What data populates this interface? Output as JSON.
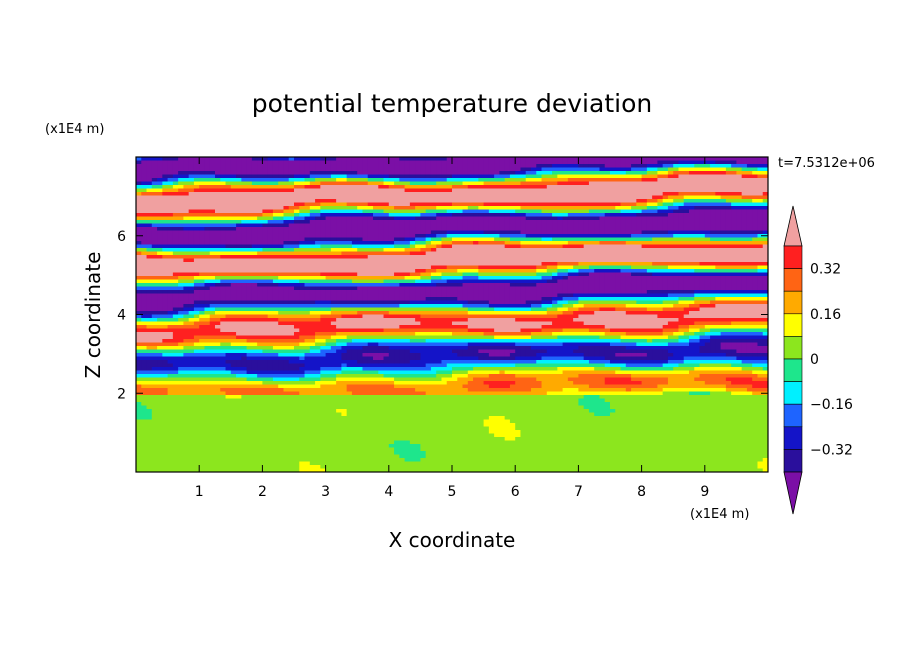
{
  "chart_data": {
    "type": "heatmap",
    "title": "potential temperature deviation",
    "xlabel": "X coordinate",
    "ylabel": "Z coordinate",
    "x_unit_label": "(x1E4 m)",
    "y_unit_label": "(x1E4 m)",
    "time_label": "t=7.5312e+06",
    "xlim": [
      0,
      10
    ],
    "ylim": [
      0,
      8
    ],
    "x_ticks": [
      1,
      2,
      3,
      4,
      5,
      6,
      7,
      8,
      9
    ],
    "y_ticks": [
      2,
      4,
      6
    ],
    "x_tick_labels": [
      "1",
      "2",
      "3",
      "4",
      "5",
      "6",
      "7",
      "8",
      "9"
    ],
    "y_tick_labels": [
      "2",
      "4",
      "6"
    ],
    "colorbar": {
      "levels": [
        -0.48,
        -0.4,
        -0.32,
        -0.24,
        -0.16,
        -0.08,
        0,
        0.08,
        0.16,
        0.24,
        0.32,
        0.4,
        0.48
      ],
      "tick_labels": [
        "0.32",
        "0.16",
        "0",
        "−0.16",
        "−0.32"
      ],
      "tick_values": [
        0.32,
        0.16,
        0,
        -0.16,
        -0.32
      ],
      "colors": [
        "#7b0fa6",
        "#2a0f9c",
        "#1414c8",
        "#1e64ff",
        "#00f0ff",
        "#1ee68c",
        "#8ce61e",
        "#ffff00",
        "#ffaa00",
        "#ff6414",
        "#ff2020",
        "#f0a0a0"
      ],
      "extend": "both"
    },
    "field_description": {
      "lower_layer_z_range": [
        0,
        2
      ],
      "lower_layer_values": [
        0,
        0.08
      ],
      "upper_layer_pattern": "alternating tilted bands of strong positive and negative deviation"
    }
  }
}
